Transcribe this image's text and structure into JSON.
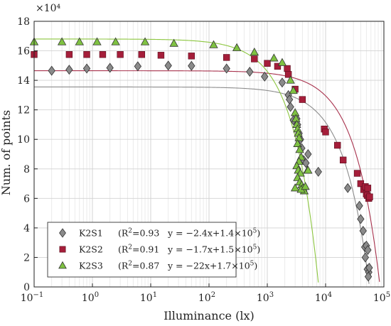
{
  "chart_data": {
    "type": "scatter",
    "title": "",
    "xlabel": "Illuminance (lx)",
    "ylabel": "Num. of points",
    "x_scale": "log",
    "xlim": [
      0.1,
      100000
    ],
    "ylim": [
      0,
      180000
    ],
    "y_multiplier_label": "×10⁴",
    "x_ticks": [
      {
        "value": 0.1,
        "base": "10",
        "exp": "−1"
      },
      {
        "value": 1,
        "base": "10",
        "exp": "0"
      },
      {
        "value": 10,
        "base": "10",
        "exp": "1"
      },
      {
        "value": 100,
        "base": "10",
        "exp": "2"
      },
      {
        "value": 1000,
        "base": "10",
        "exp": "3"
      },
      {
        "value": 10000,
        "base": "10",
        "exp": "4"
      },
      {
        "value": 100000,
        "base": "10",
        "exp": "5"
      }
    ],
    "y_ticks": [
      {
        "value": 0,
        "label": "0"
      },
      {
        "value": 20000,
        "label": "2"
      },
      {
        "value": 40000,
        "label": "4"
      },
      {
        "value": 60000,
        "label": "6"
      },
      {
        "value": 80000,
        "label": "8"
      },
      {
        "value": 100000,
        "label": "10"
      },
      {
        "value": 120000,
        "label": "12"
      },
      {
        "value": 140000,
        "label": "14"
      },
      {
        "value": 160000,
        "label": "16"
      },
      {
        "value": 180000,
        "label": "18"
      }
    ],
    "grid": true,
    "legend_position": "bottom-left",
    "series": [
      {
        "name": "K2S1",
        "marker": "diamond",
        "color": "#8a8a8a",
        "fit_color": "#8c8c8c",
        "r2_label": "(R",
        "r2_sup": "2",
        "r2_value": "=0.93",
        "eq_label": "y = −2.4x+1.4×10",
        "eq_sup": "5",
        "eq_close": ")",
        "fit": {
          "plateau": 135500,
          "slope": -2.4
        },
        "points": [
          [
            0.2,
            146500
          ],
          [
            0.4,
            147200
          ],
          [
            0.8,
            148000
          ],
          [
            2,
            148500
          ],
          [
            6,
            149500
          ],
          [
            20,
            150000
          ],
          [
            50,
            149800
          ],
          [
            200,
            148000
          ],
          [
            500,
            145800
          ],
          [
            900,
            142500
          ],
          [
            1800,
            138500
          ],
          [
            2300,
            130000
          ],
          [
            2400,
            127000
          ],
          [
            2500,
            122000
          ],
          [
            2800,
            113000
          ],
          [
            3200,
            114000
          ],
          [
            3300,
            110000
          ],
          [
            3500,
            104000
          ],
          [
            3700,
            100000
          ],
          [
            3900,
            94000
          ],
          [
            4200,
            86000
          ],
          [
            4600,
            84000
          ],
          [
            5000,
            90000
          ],
          [
            7500,
            78000
          ],
          [
            24000,
            67000
          ],
          [
            38000,
            55000
          ],
          [
            40000,
            46000
          ],
          [
            44000,
            38000
          ],
          [
            47000,
            27000
          ],
          [
            50000,
            28000
          ],
          [
            48000,
            20000
          ],
          [
            52000,
            12000
          ],
          [
            55000,
            10000
          ],
          [
            54000,
            7000
          ],
          [
            56000,
            13000
          ],
          [
            53000,
            25000
          ]
        ]
      },
      {
        "name": "K2S2",
        "marker": "square",
        "color": "#a51e3a",
        "fit_color": "#a8324d",
        "r2_label": "(R",
        "r2_sup": "2",
        "r2_value": "=0.91",
        "eq_label": "y = −1.7x+1.5×10",
        "eq_sup": "5",
        "eq_close": ")",
        "fit": {
          "plateau": 146500,
          "slope": -1.7
        },
        "points": [
          [
            0.1,
            157500
          ],
          [
            0.4,
            157500
          ],
          [
            0.8,
            157500
          ],
          [
            1.5,
            157500
          ],
          [
            3,
            157500
          ],
          [
            7,
            157500
          ],
          [
            15,
            157000
          ],
          [
            50,
            156500
          ],
          [
            200,
            155500
          ],
          [
            600,
            154500
          ],
          [
            1000,
            151500
          ],
          [
            1500,
            149500
          ],
          [
            2200,
            148000
          ],
          [
            2300,
            144000
          ],
          [
            3000,
            134000
          ],
          [
            4000,
            127000
          ],
          [
            9500,
            107000
          ],
          [
            10000,
            105000
          ],
          [
            16000,
            96000
          ],
          [
            20000,
            86000
          ],
          [
            35000,
            77000
          ],
          [
            40000,
            70000
          ],
          [
            45000,
            66000
          ],
          [
            48000,
            68000
          ],
          [
            50000,
            63000
          ],
          [
            52000,
            62000
          ],
          [
            55000,
            60000
          ],
          [
            57000,
            61000
          ],
          [
            53000,
            67000
          ]
        ]
      },
      {
        "name": "K2S3",
        "marker": "triangle",
        "color": "#7fc242",
        "fit_color": "#8cc63f",
        "r2_label": "(R",
        "r2_sup": "2",
        "r2_value": "=0.87",
        "eq_label": "y = −22x+1.7×10",
        "eq_sup": "5",
        "eq_close": ")",
        "fit": {
          "plateau": 168000,
          "slope": -22
        },
        "points": [
          [
            0.1,
            166000
          ],
          [
            0.3,
            166000
          ],
          [
            0.6,
            166000
          ],
          [
            1.2,
            166000
          ],
          [
            2.5,
            166000
          ],
          [
            8,
            166000
          ],
          [
            25,
            165000
          ],
          [
            120,
            164000
          ],
          [
            300,
            162000
          ],
          [
            600,
            159000
          ],
          [
            1300,
            155000
          ],
          [
            1800,
            152000
          ],
          [
            2500,
            140000
          ],
          [
            2800,
            133000
          ],
          [
            3000,
            118000
          ],
          [
            3100,
            114000
          ],
          [
            3200,
            110000
          ],
          [
            3300,
            107000
          ],
          [
            3400,
            104000
          ],
          [
            3500,
            101000
          ],
          [
            3300,
            97000
          ],
          [
            3600,
            93000
          ],
          [
            3800,
            88000
          ],
          [
            3500,
            85000
          ],
          [
            3200,
            82000
          ],
          [
            3400,
            79000
          ],
          [
            3700,
            77000
          ],
          [
            3300,
            74000
          ],
          [
            3600,
            71000
          ],
          [
            3900,
            69000
          ],
          [
            4100,
            67000
          ],
          [
            4300,
            65000
          ],
          [
            3000,
            67000
          ],
          [
            3800,
            66000
          ],
          [
            4500,
            68000
          ],
          [
            4900,
            79000
          ],
          [
            5000,
            79000
          ]
        ]
      }
    ]
  }
}
